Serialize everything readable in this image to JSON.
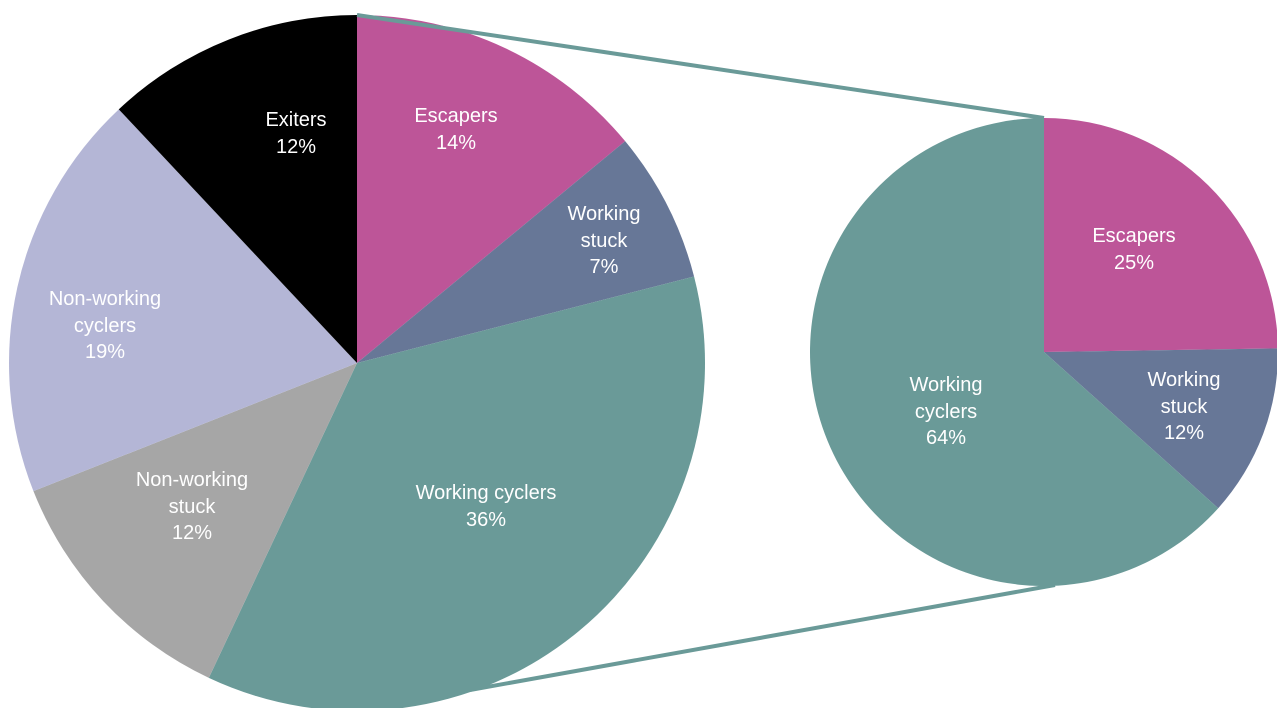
{
  "chart_data": [
    {
      "type": "pie",
      "categories": [
        "Escapers",
        "Working stuck",
        "Working cyclers",
        "Non-working stuck",
        "Non-working cyclers",
        "Exiters"
      ],
      "values": [
        14,
        7,
        36,
        12,
        19,
        12
      ],
      "value_labels": [
        "14%",
        "7%",
        "36%",
        "12%",
        "19%",
        "12%"
      ],
      "colors": [
        "#bd5598",
        "#677797",
        "#6a9a98",
        "#a6a6a6",
        "#b4b6d6",
        "#000000"
      ]
    },
    {
      "type": "pie",
      "categories": [
        "Escapers",
        "Working stuck",
        "Working cyclers"
      ],
      "values": [
        25,
        12,
        64
      ],
      "value_labels": [
        "25%",
        "12%",
        "64%"
      ],
      "colors": [
        "#bd5598",
        "#677797",
        "#6a9a98"
      ]
    }
  ]
}
